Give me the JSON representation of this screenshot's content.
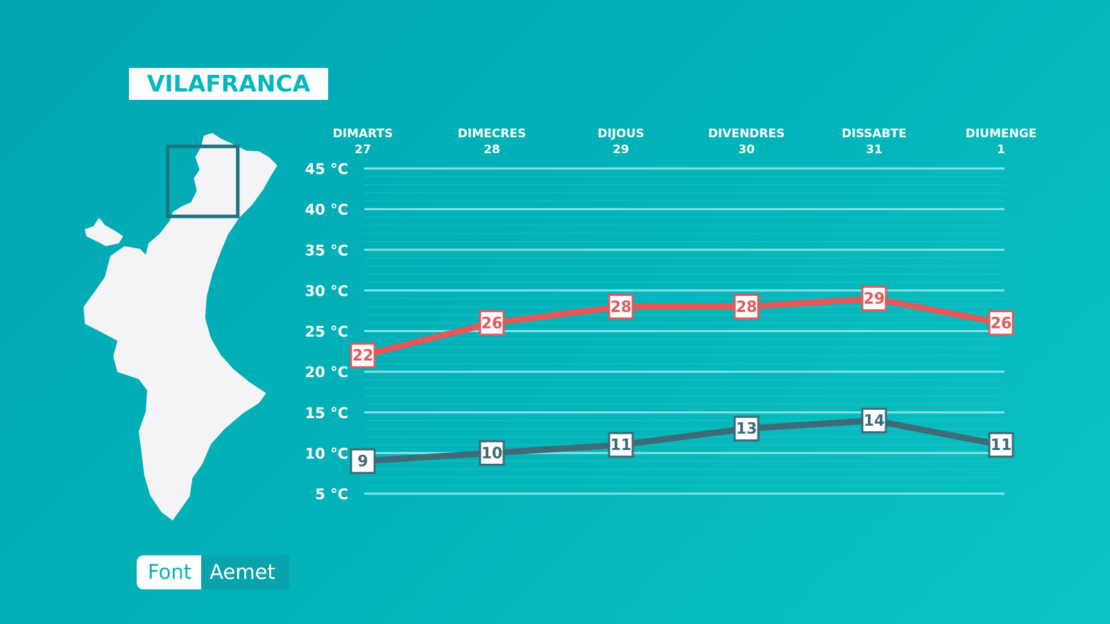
{
  "title": "VILAFRANCA",
  "source": {
    "label": "Font",
    "value": "Aemet"
  },
  "map": {
    "region": "Comunitat Valenciana",
    "highlight": "north (Els Ports)"
  },
  "colors": {
    "background": "#02b3b9",
    "max_series": "#e05a5a",
    "min_series": "#3d6b78",
    "grid": "#7fe3e6",
    "highlight_box": "#1e7480"
  },
  "chart_data": {
    "type": "line",
    "categories": [
      {
        "day": "DIMARTS",
        "date": "27"
      },
      {
        "day": "DIMECRES",
        "date": "28"
      },
      {
        "day": "DIJOUS",
        "date": "29"
      },
      {
        "day": "DIVENDRES",
        "date": "30"
      },
      {
        "day": "DISSABTE",
        "date": "31"
      },
      {
        "day": "DIUMENGE",
        "date": "1"
      }
    ],
    "series": [
      {
        "key": "max",
        "values": [
          22,
          26,
          28,
          28,
          29,
          26
        ],
        "color": "#e05a5a"
      },
      {
        "key": "min",
        "values": [
          9,
          10,
          11,
          13,
          14,
          11
        ],
        "color": "#3d6b78"
      }
    ],
    "y_ticks": [
      "45 °C",
      "40 °C",
      "35 °C",
      "30 °C",
      "25 °C",
      "20 °C",
      "15 °C",
      "10 °C",
      "5 °C"
    ],
    "y_tick_values": [
      45,
      40,
      35,
      30,
      25,
      20,
      15,
      10,
      5
    ],
    "ylim": [
      5,
      45
    ],
    "unit": "°C",
    "grid": true,
    "minor_grid_step": 1
  }
}
